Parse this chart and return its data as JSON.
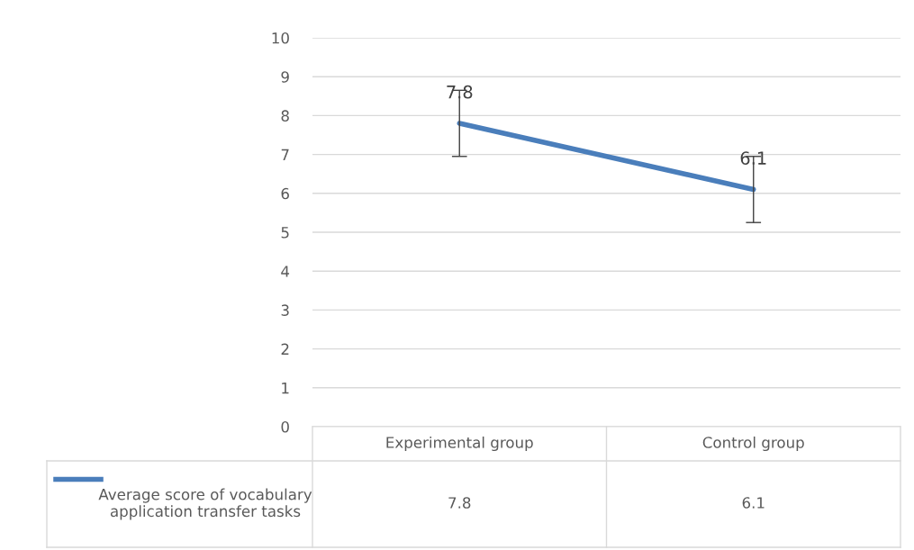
{
  "chart_data": {
    "type": "line",
    "categories": [
      "Experimental group",
      "Control group"
    ],
    "series": [
      {
        "name": "Average score of vocabulary application transfer tasks",
        "color": "#4a7ebb",
        "values": [
          7.8,
          6.1
        ],
        "errors": [
          0.85,
          0.85
        ],
        "value_labels": [
          "7.8",
          "6.1"
        ]
      }
    ],
    "ylim": [
      0,
      10
    ],
    "yticks": [
      0,
      1,
      2,
      3,
      4,
      5,
      6,
      7,
      8,
      9,
      10
    ],
    "grid": "y",
    "legend": "bottom",
    "marker": "none",
    "line_style": "solid"
  }
}
